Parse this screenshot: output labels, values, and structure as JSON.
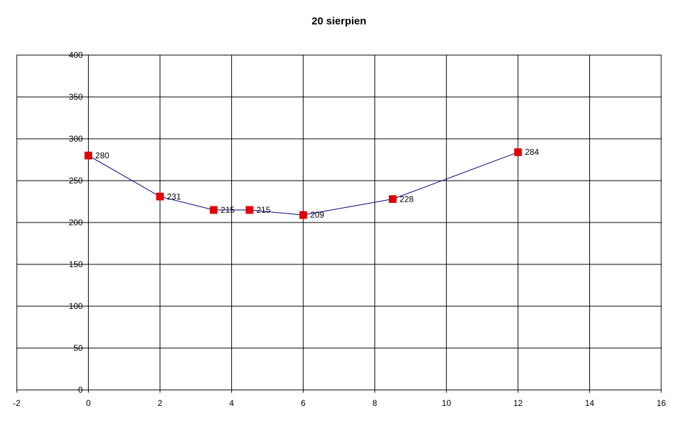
{
  "chart_data": {
    "type": "scatter",
    "title": "20 sierpien",
    "xlabel": "",
    "ylabel": "",
    "xlim": [
      -2,
      16
    ],
    "ylim": [
      0,
      400
    ],
    "x_ticks": [
      -2,
      0,
      2,
      4,
      6,
      8,
      10,
      12,
      14,
      16
    ],
    "y_ticks": [
      0,
      50,
      100,
      150,
      200,
      250,
      300,
      350,
      400
    ],
    "grid": true,
    "legend": "none",
    "series": [
      {
        "x": [
          0,
          2,
          3.5,
          4.5,
          6,
          8.5,
          12
        ],
        "values": [
          280,
          231,
          215,
          215,
          209,
          228,
          284
        ],
        "data_labels": [
          "280",
          "231",
          "215",
          "215",
          "209",
          "228",
          "284"
        ],
        "line_color": "#000080",
        "marker_color": "#e00000",
        "marker": "square"
      }
    ]
  }
}
